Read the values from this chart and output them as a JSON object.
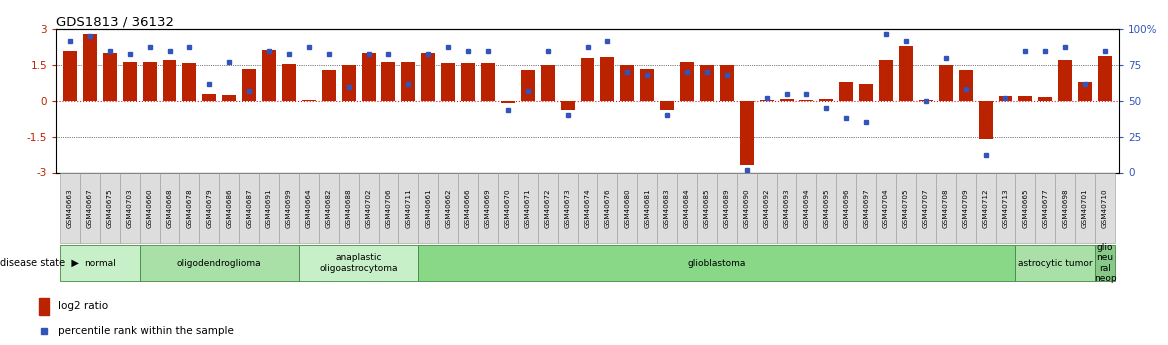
{
  "title": "GDS1813 / 36132",
  "samples": [
    "GSM40663",
    "GSM40667",
    "GSM40675",
    "GSM40703",
    "GSM40660",
    "GSM40668",
    "GSM40678",
    "GSM40679",
    "GSM40686",
    "GSM40687",
    "GSM40691",
    "GSM40699",
    "GSM40664",
    "GSM40682",
    "GSM40688",
    "GSM40702",
    "GSM40706",
    "GSM40711",
    "GSM40661",
    "GSM40662",
    "GSM40666",
    "GSM40669",
    "GSM40670",
    "GSM40671",
    "GSM40672",
    "GSM40673",
    "GSM40674",
    "GSM40676",
    "GSM40680",
    "GSM40681",
    "GSM40683",
    "GSM40684",
    "GSM40685",
    "GSM40689",
    "GSM40690",
    "GSM40692",
    "GSM40693",
    "GSM40694",
    "GSM40695",
    "GSM40696",
    "GSM40697",
    "GSM40704",
    "GSM40705",
    "GSM40707",
    "GSM40708",
    "GSM40709",
    "GSM40712",
    "GSM40713",
    "GSM40665",
    "GSM40677",
    "GSM40698",
    "GSM40701",
    "GSM40710"
  ],
  "log2_ratio": [
    2.1,
    2.8,
    2.0,
    1.65,
    1.65,
    1.7,
    1.6,
    0.3,
    0.25,
    1.35,
    2.15,
    1.55,
    0.02,
    1.3,
    1.5,
    2.0,
    1.65,
    1.65,
    2.0,
    1.6,
    1.6,
    1.6,
    -0.1,
    1.3,
    1.5,
    -0.4,
    1.8,
    1.85,
    1.5,
    1.35,
    -0.4,
    1.65,
    1.5,
    1.5,
    -2.7,
    0.05,
    0.1,
    0.05,
    0.1,
    0.8,
    0.7,
    1.7,
    2.3,
    0.05,
    1.5,
    1.3,
    -1.6,
    0.2,
    0.2,
    0.15,
    1.7,
    0.8,
    1.9
  ],
  "percentile": [
    92,
    95,
    85,
    83,
    88,
    85,
    88,
    62,
    77,
    57,
    85,
    83,
    88,
    83,
    60,
    83,
    83,
    62,
    83,
    88,
    85,
    85,
    44,
    57,
    85,
    40,
    88,
    92,
    70,
    68,
    40,
    70,
    70,
    68,
    2,
    52,
    55,
    55,
    45,
    38,
    35,
    97,
    92,
    50,
    80,
    58,
    12,
    52,
    85,
    85,
    88,
    62,
    85
  ],
  "disease_groups": [
    {
      "label": "normal",
      "start": 0,
      "end": 4,
      "color": "#c8f0c8"
    },
    {
      "label": "oligodendroglioma",
      "start": 4,
      "end": 12,
      "color": "#a8e0a8"
    },
    {
      "label": "anaplastic\noligoastrocytoma",
      "start": 12,
      "end": 18,
      "color": "#c8f0c8"
    },
    {
      "label": "glioblastoma",
      "start": 18,
      "end": 48,
      "color": "#88d888"
    },
    {
      "label": "astrocytic tumor",
      "start": 48,
      "end": 52,
      "color": "#a8e0a8"
    },
    {
      "label": "glio\nneu\nral\nneop",
      "start": 52,
      "end": 53,
      "color": "#88c888"
    }
  ],
  "ylim": [
    -3,
    3
  ],
  "yticks_left": [
    -3,
    -1.5,
    0,
    1.5,
    3
  ],
  "yticks_right": [
    0,
    25,
    50,
    75,
    100
  ],
  "bar_color": "#bb2200",
  "dot_color": "#3355bb",
  "hline_color": "#cc2222",
  "grid_color": "#777777",
  "bg_color": "#ffffff",
  "label_bg": "#dddddd"
}
